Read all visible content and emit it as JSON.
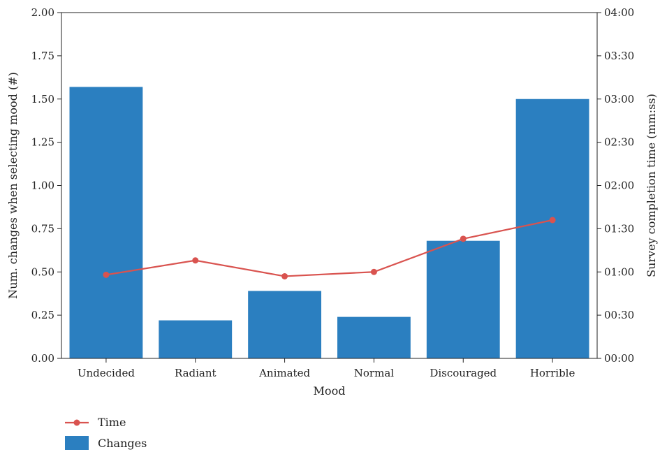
{
  "chart_data": {
    "type": "bar",
    "title": "",
    "xlabel": "Mood",
    "ylabel": "Num. changes when selecting mood (#)",
    "y2label": "Survey completion time (mm:ss)",
    "categories": [
      "Undecided",
      "Radiant",
      "Animated",
      "Normal",
      "Discouraged",
      "Horrible"
    ],
    "ylim": [
      0,
      2.0
    ],
    "yticks": [
      "0.00",
      "0.25",
      "0.50",
      "0.75",
      "1.00",
      "1.25",
      "1.50",
      "1.75",
      "2.00"
    ],
    "y2lim_seconds": [
      0,
      240
    ],
    "y2ticks": [
      "00:00",
      "00:30",
      "01:00",
      "01:30",
      "02:00",
      "02:30",
      "03:00",
      "03:30",
      "04:00"
    ],
    "legend_position": "below-left",
    "series": [
      {
        "name": "Changes",
        "type": "bar",
        "axis": "left",
        "color": "#2b7fc0",
        "values": [
          1.57,
          0.22,
          0.39,
          0.24,
          0.68,
          1.5
        ]
      },
      {
        "name": "Time",
        "type": "line",
        "axis": "right",
        "color": "#d9534f",
        "values_mmss": [
          "00:58",
          "01:08",
          "00:57",
          "01:00",
          "01:23",
          "01:36"
        ],
        "values_seconds": [
          58,
          68,
          57,
          60,
          83,
          96
        ]
      }
    ]
  }
}
